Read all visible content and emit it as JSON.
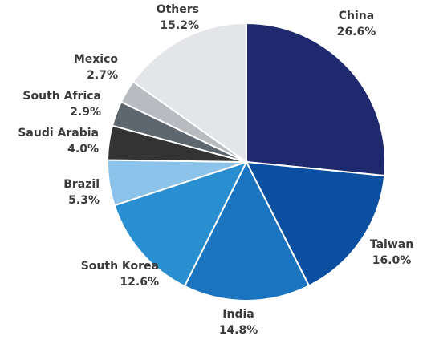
{
  "chart_data": {
    "type": "pie",
    "categories": [
      "China",
      "Taiwan",
      "India",
      "South Korea",
      "Brazil",
      "Saudi Arabia",
      "South Africa",
      "Mexico",
      "Others"
    ],
    "values": [
      26.6,
      16.0,
      14.8,
      12.6,
      5.3,
      4.0,
      2.9,
      2.7,
      15.2
    ],
    "value_labels": [
      "26.6%",
      "16.0%",
      "14.8%",
      "12.6%",
      "5.3%",
      "4.0%",
      "2.9%",
      "2.7%",
      "15.2%"
    ],
    "colors": [
      "#1f2a6e",
      "#0a4fa0",
      "#1a74bf",
      "#2a8fd0",
      "#8cc3ea",
      "#333333",
      "#5e6770",
      "#b8bcc0",
      "#e3e5e8"
    ]
  }
}
